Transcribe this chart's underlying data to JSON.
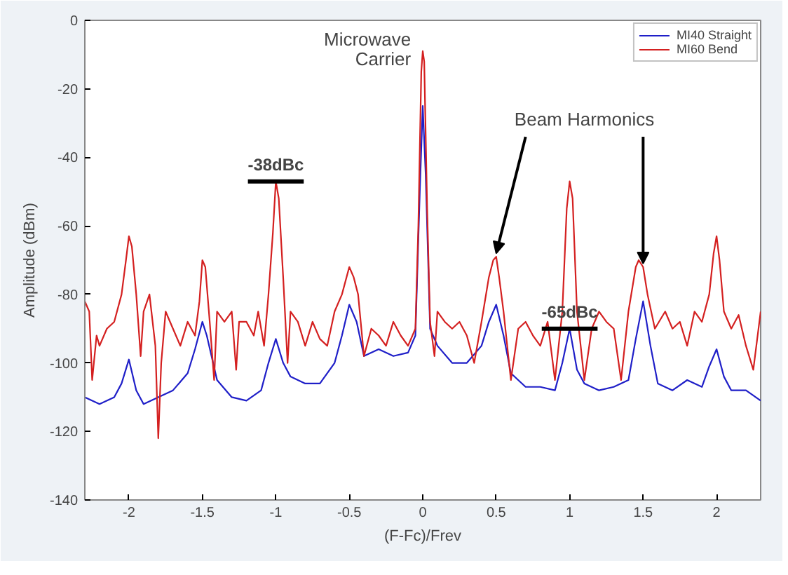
{
  "chart_data": {
    "type": "line",
    "xlabel": "(F-Fc)/Frev",
    "ylabel": "Amplitude (dBm)",
    "xlim": [
      -2.3,
      2.3
    ],
    "ylim": [
      -140,
      0
    ],
    "xticks": [
      -2,
      -1.5,
      -1,
      -0.5,
      0,
      0.5,
      1,
      1.5,
      2
    ],
    "yticks": [
      -140,
      -120,
      -100,
      -80,
      -60,
      -40,
      -20,
      0
    ],
    "grid": false,
    "legend": "top right",
    "marker": "none",
    "line_style": "solid",
    "series": [
      {
        "name": "MI40 Straight",
        "color": "#1f1fc8",
        "x": [
          -2.3,
          -2.2,
          -2.1,
          -2.05,
          -2.0,
          -1.95,
          -1.9,
          -1.8,
          -1.7,
          -1.6,
          -1.55,
          -1.5,
          -1.47,
          -1.4,
          -1.3,
          -1.2,
          -1.1,
          -1.05,
          -1.0,
          -0.95,
          -0.9,
          -0.8,
          -0.7,
          -0.6,
          -0.55,
          -0.5,
          -0.45,
          -0.4,
          -0.3,
          -0.2,
          -0.1,
          -0.05,
          -0.02,
          0.0,
          0.02,
          0.05,
          0.1,
          0.2,
          0.3,
          0.4,
          0.45,
          0.5,
          0.55,
          0.6,
          0.7,
          0.8,
          0.9,
          0.95,
          1.0,
          1.05,
          1.1,
          1.2,
          1.3,
          1.4,
          1.45,
          1.5,
          1.55,
          1.6,
          1.7,
          1.8,
          1.9,
          1.95,
          2.0,
          2.05,
          2.1,
          2.2,
          2.3
        ],
        "values": [
          -110,
          -112,
          -110,
          -106,
          -99,
          -108,
          -112,
          -110,
          -108,
          -103,
          -96,
          -88,
          -92,
          -105,
          -110,
          -111,
          -108,
          -100,
          -93,
          -100,
          -104,
          -106,
          -106,
          -100,
          -92,
          -83,
          -88,
          -98,
          -96,
          -98,
          -97,
          -92,
          -50,
          -25,
          -45,
          -90,
          -95,
          -100,
          -100,
          -95,
          -88,
          -83,
          -92,
          -103,
          -107,
          -107,
          -108,
          -100,
          -90,
          -102,
          -106,
          -108,
          -107,
          -105,
          -93,
          -82,
          -95,
          -106,
          -108,
          -105,
          -107,
          -101,
          -96,
          -104,
          -108,
          -108,
          -111
        ]
      },
      {
        "name": "MI60 Bend",
        "color": "#d42020",
        "x": [
          -2.3,
          -2.27,
          -2.25,
          -2.22,
          -2.2,
          -2.15,
          -2.1,
          -2.05,
          -2.02,
          -2.0,
          -1.98,
          -1.95,
          -1.92,
          -1.9,
          -1.86,
          -1.82,
          -1.8,
          -1.78,
          -1.75,
          -1.7,
          -1.65,
          -1.6,
          -1.55,
          -1.52,
          -1.5,
          -1.48,
          -1.45,
          -1.42,
          -1.4,
          -1.35,
          -1.3,
          -1.27,
          -1.25,
          -1.2,
          -1.15,
          -1.12,
          -1.08,
          -1.05,
          -1.02,
          -1.0,
          -0.98,
          -0.95,
          -0.92,
          -0.9,
          -0.85,
          -0.8,
          -0.75,
          -0.7,
          -0.65,
          -0.6,
          -0.55,
          -0.5,
          -0.47,
          -0.44,
          -0.4,
          -0.35,
          -0.3,
          -0.25,
          -0.2,
          -0.15,
          -0.1,
          -0.05,
          -0.03,
          -0.01,
          0.0,
          0.01,
          0.03,
          0.05,
          0.08,
          0.1,
          0.15,
          0.2,
          0.25,
          0.3,
          0.35,
          0.4,
          0.45,
          0.48,
          0.5,
          0.52,
          0.55,
          0.6,
          0.65,
          0.7,
          0.75,
          0.8,
          0.85,
          0.9,
          0.95,
          0.98,
          1.0,
          1.02,
          1.05,
          1.1,
          1.15,
          1.2,
          1.25,
          1.3,
          1.35,
          1.4,
          1.45,
          1.47,
          1.5,
          1.53,
          1.58,
          1.65,
          1.7,
          1.75,
          1.8,
          1.85,
          1.9,
          1.95,
          1.98,
          2.0,
          2.02,
          2.05,
          2.1,
          2.15,
          2.2,
          2.25,
          2.3
        ],
        "values": [
          -82,
          -85,
          -105,
          -92,
          -95,
          -90,
          -88,
          -80,
          -70,
          -63,
          -66,
          -80,
          -98,
          -85,
          -80,
          -95,
          -122,
          -100,
          -85,
          -90,
          -95,
          -88,
          -92,
          -82,
          -70,
          -72,
          -88,
          -105,
          -85,
          -88,
          -85,
          -102,
          -88,
          -88,
          -92,
          -85,
          -95,
          -80,
          -62,
          -47,
          -52,
          -75,
          -100,
          -85,
          -88,
          -95,
          -88,
          -93,
          -95,
          -85,
          -80,
          -72,
          -75,
          -80,
          -98,
          -90,
          -92,
          -95,
          -88,
          -92,
          -95,
          -90,
          -60,
          -15,
          -9,
          -12,
          -55,
          -88,
          -98,
          -85,
          -88,
          -90,
          -88,
          -92,
          -100,
          -88,
          -75,
          -70,
          -69,
          -75,
          -85,
          -105,
          -90,
          -88,
          -92,
          -95,
          -88,
          -105,
          -85,
          -55,
          -47,
          -52,
          -85,
          -105,
          -90,
          -85,
          -88,
          -90,
          -105,
          -85,
          -72,
          -70,
          -72,
          -80,
          -90,
          -85,
          -90,
          -88,
          -95,
          -85,
          -88,
          -80,
          -68,
          -63,
          -70,
          -85,
          -90,
          -86,
          -95,
          -102,
          -85
        ]
      }
    ],
    "annotations": [
      {
        "text": "Microwave Carrier",
        "x": 0,
        "y": -9
      },
      {
        "text": "Beam Harmonics",
        "x": 0.5,
        "y": -69
      },
      {
        "text": "-38dBc",
        "x": -1.0,
        "y": -47
      },
      {
        "text": "-65dBc",
        "x": 1.0,
        "y": -90
      }
    ]
  }
}
